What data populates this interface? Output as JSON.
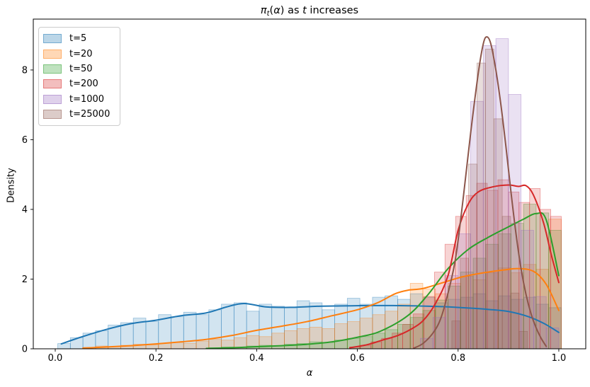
{
  "chart_data": {
    "type": "histogram+kde",
    "title_text": "πₜ(α) as t increases",
    "title_segments": [
      {
        "text": "π",
        "italic": true,
        "sub": false
      },
      {
        "text": "t",
        "italic": true,
        "sub": true
      },
      {
        "text": "(",
        "italic": false,
        "sub": false
      },
      {
        "text": "α",
        "italic": true,
        "sub": false
      },
      {
        "text": ")",
        "italic": false,
        "sub": false
      },
      {
        "text": " as ",
        "italic": false,
        "sub": false
      },
      {
        "text": "t",
        "italic": true,
        "sub": false
      },
      {
        "text": " increases",
        "italic": false,
        "sub": false
      }
    ],
    "xlabel": "α",
    "ylabel": "Density",
    "xlim": [
      -0.0436,
      1.0535
    ],
    "ylim": [
      0,
      9.46
    ],
    "xticks": [
      0.0,
      0.2,
      0.4,
      0.6,
      0.8,
      1.0
    ],
    "xtick_labels": [
      "0.0",
      "0.2",
      "0.4",
      "0.6",
      "0.8",
      "1.0"
    ],
    "yticks": [
      0,
      2,
      4,
      6,
      8
    ],
    "ytick_labels": [
      "0",
      "2",
      "4",
      "6",
      "8"
    ],
    "grid": false,
    "legend_position": "upper-left",
    "spine_color": "#000000",
    "background": "#ffffff",
    "series": [
      {
        "name": "t=5",
        "color": "#1f77b4",
        "kde_visible": true,
        "hist": {
          "start": 0.005,
          "bin_width": 0.025,
          "heights": [
            0.15,
            0.32,
            0.45,
            0.52,
            0.68,
            0.75,
            0.88,
            0.78,
            0.98,
            0.92,
            1.05,
            0.98,
            1.12,
            1.28,
            1.32,
            1.08,
            1.28,
            1.22,
            1.18,
            1.38,
            1.32,
            1.12,
            1.28,
            1.45,
            1.28,
            1.48,
            1.52,
            1.42,
            1.58,
            1.48,
            1.32,
            1.42,
            1.48,
            1.58,
            1.38,
            1.52,
            1.42,
            1.48,
            1.28,
            1.18
          ]
        },
        "kde": [
          [
            0.012,
            0.14
          ],
          [
            0.05,
            0.33
          ],
          [
            0.1,
            0.55
          ],
          [
            0.15,
            0.72
          ],
          [
            0.2,
            0.82
          ],
          [
            0.25,
            0.95
          ],
          [
            0.3,
            1.03
          ],
          [
            0.34,
            1.2
          ],
          [
            0.375,
            1.3
          ],
          [
            0.42,
            1.2
          ],
          [
            0.47,
            1.19
          ],
          [
            0.52,
            1.22
          ],
          [
            0.57,
            1.23
          ],
          [
            0.62,
            1.24
          ],
          [
            0.67,
            1.24
          ],
          [
            0.72,
            1.23
          ],
          [
            0.77,
            1.21
          ],
          [
            0.82,
            1.17
          ],
          [
            0.86,
            1.13
          ],
          [
            0.9,
            1.07
          ],
          [
            0.94,
            0.92
          ],
          [
            0.97,
            0.73
          ],
          [
            1.0,
            0.47
          ]
        ]
      },
      {
        "name": "t=20",
        "color": "#ff7f0e",
        "kde_visible": true,
        "hist": {
          "start": 0.055,
          "bin_width": 0.025,
          "heights": [
            0.04,
            0.08,
            0.06,
            0.1,
            0.13,
            0.11,
            0.16,
            0.18,
            0.16,
            0.22,
            0.27,
            0.25,
            0.32,
            0.38,
            0.35,
            0.45,
            0.52,
            0.58,
            0.62,
            0.58,
            0.72,
            0.78,
            0.88,
            0.98,
            1.08,
            1.28,
            1.88,
            1.72,
            1.58,
            1.88,
            2.08,
            1.98,
            2.18,
            2.32,
            2.18,
            2.42,
            2.28,
            3.72
          ]
        },
        "kde": [
          [
            0.055,
            0.02
          ],
          [
            0.1,
            0.05
          ],
          [
            0.15,
            0.09
          ],
          [
            0.2,
            0.14
          ],
          [
            0.25,
            0.2
          ],
          [
            0.3,
            0.27
          ],
          [
            0.35,
            0.38
          ],
          [
            0.4,
            0.53
          ],
          [
            0.45,
            0.65
          ],
          [
            0.5,
            0.78
          ],
          [
            0.55,
            0.95
          ],
          [
            0.6,
            1.12
          ],
          [
            0.64,
            1.32
          ],
          [
            0.675,
            1.58
          ],
          [
            0.7,
            1.68
          ],
          [
            0.73,
            1.73
          ],
          [
            0.77,
            1.9
          ],
          [
            0.81,
            2.07
          ],
          [
            0.85,
            2.18
          ],
          [
            0.89,
            2.26
          ],
          [
            0.92,
            2.3
          ],
          [
            0.95,
            2.22
          ],
          [
            0.975,
            1.85
          ],
          [
            1.0,
            1.1
          ]
        ]
      },
      {
        "name": "t=50",
        "color": "#2ca02c",
        "kde_visible": true,
        "hist": {
          "start": 0.305,
          "bin_width": 0.025,
          "heights": [
            0.03,
            0.05,
            0.04,
            0.08,
            0.1,
            0.09,
            0.13,
            0.15,
            0.2,
            0.18,
            0.25,
            0.3,
            0.35,
            0.45,
            0.55,
            0.7,
            0.9,
            1.1,
            1.4,
            1.8,
            2.2,
            2.6,
            3.0,
            3.3,
            3.6,
            4.15,
            3.9,
            3.4
          ]
        },
        "kde": [
          [
            0.3,
            0.01
          ],
          [
            0.35,
            0.03
          ],
          [
            0.4,
            0.06
          ],
          [
            0.45,
            0.09
          ],
          [
            0.5,
            0.13
          ],
          [
            0.55,
            0.2
          ],
          [
            0.6,
            0.33
          ],
          [
            0.645,
            0.5
          ],
          [
            0.7,
            0.95
          ],
          [
            0.74,
            1.55
          ],
          [
            0.78,
            2.3
          ],
          [
            0.82,
            2.85
          ],
          [
            0.86,
            3.2
          ],
          [
            0.9,
            3.5
          ],
          [
            0.93,
            3.72
          ],
          [
            0.955,
            3.88
          ],
          [
            0.975,
            3.7
          ],
          [
            1.0,
            2.1
          ]
        ]
      },
      {
        "name": "t=200",
        "color": "#d62728",
        "kde_visible": true,
        "hist": {
          "start": 0.585,
          "bin_width": 0.021,
          "heights": [
            0.05,
            0.1,
            0.2,
            0.3,
            0.45,
            0.7,
            1.0,
            1.5,
            2.2,
            3.0,
            3.8,
            4.4,
            4.75,
            4.55,
            4.85,
            4.5,
            4.2,
            4.6,
            4.0,
            3.8
          ]
        },
        "kde": [
          [
            0.585,
            0.03
          ],
          [
            0.62,
            0.12
          ],
          [
            0.65,
            0.25
          ],
          [
            0.68,
            0.38
          ],
          [
            0.705,
            0.55
          ],
          [
            0.73,
            0.8
          ],
          [
            0.755,
            1.3
          ],
          [
            0.78,
            2.1
          ],
          [
            0.8,
            3.4
          ],
          [
            0.82,
            4.15
          ],
          [
            0.84,
            4.5
          ],
          [
            0.87,
            4.65
          ],
          [
            0.9,
            4.7
          ],
          [
            0.92,
            4.66
          ],
          [
            0.935,
            4.68
          ],
          [
            0.95,
            4.4
          ],
          [
            0.97,
            3.6
          ],
          [
            0.985,
            2.7
          ],
          [
            1.0,
            1.9
          ]
        ]
      },
      {
        "name": "t=1000",
        "color": "#9467bd",
        "kde_visible": false,
        "hist": {
          "start": 0.725,
          "bin_width": 0.025,
          "heights": [
            0.3,
            0.9,
            2.1,
            3.3,
            7.1,
            8.7,
            8.9,
            7.3,
            3.4,
            1.5,
            0.6
          ]
        },
        "kde": []
      },
      {
        "name": "t=25000",
        "color": "#8c564b",
        "kde_visible": true,
        "hist": {
          "start": 0.7875,
          "bin_width": 0.0167,
          "heights": [
            0.8,
            2.6,
            5.3,
            8.2,
            8.6,
            6.6,
            3.8,
            1.6,
            0.5
          ]
        },
        "kde": [
          [
            0.712,
            0.02
          ],
          [
            0.73,
            0.15
          ],
          [
            0.75,
            0.45
          ],
          [
            0.765,
            0.85
          ],
          [
            0.78,
            1.6
          ],
          [
            0.795,
            2.6
          ],
          [
            0.81,
            4.3
          ],
          [
            0.825,
            6.2
          ],
          [
            0.84,
            7.9
          ],
          [
            0.85,
            8.75
          ],
          [
            0.857,
            8.95
          ],
          [
            0.865,
            8.75
          ],
          [
            0.875,
            8.0
          ],
          [
            0.885,
            7.0
          ],
          [
            0.895,
            5.8
          ],
          [
            0.905,
            4.5
          ],
          [
            0.915,
            3.3
          ],
          [
            0.925,
            2.3
          ],
          [
            0.935,
            1.55
          ],
          [
            0.945,
            1.0
          ],
          [
            0.955,
            0.6
          ],
          [
            0.965,
            0.3
          ],
          [
            0.975,
            0.07
          ]
        ]
      }
    ]
  }
}
